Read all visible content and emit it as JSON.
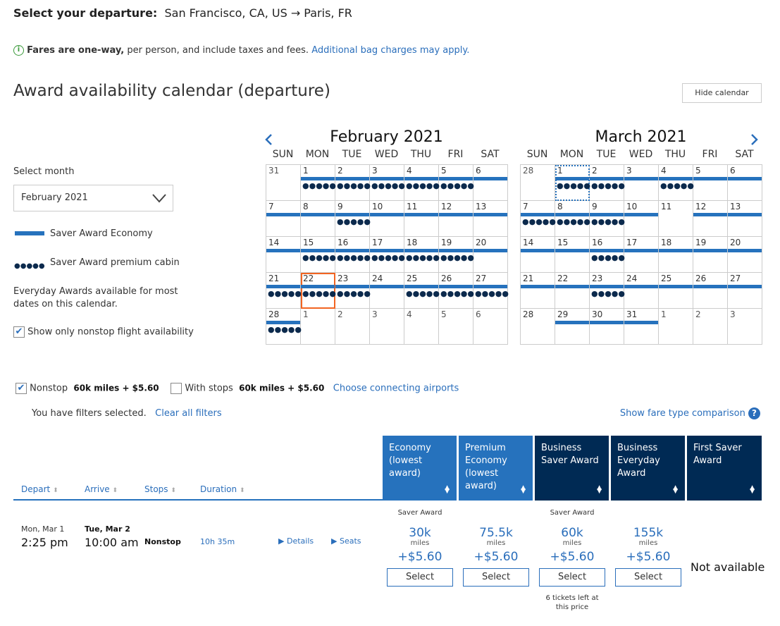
{
  "header": {
    "label": "Select your departure:",
    "route": "San Francisco, CA, US → Paris, FR"
  },
  "notice": {
    "icon": "info-icon",
    "bold": "Fares are one-way,",
    "text": " per person, and include taxes and fees.",
    "link": "Additional bag charges may apply."
  },
  "calendar": {
    "title": "Award availability calendar (departure)",
    "hide_button": "Hide calendar",
    "select_month_label": "Select month",
    "select_month_value": "February 2021",
    "legend": {
      "economy": "Saver Award Economy",
      "premium": "Saver Award premium cabin",
      "everyday": "Everyday Awards available for most dates on this calendar."
    },
    "nonstop_only": {
      "label": "Show only nonstop flight availability",
      "checked": true
    },
    "weekdays": [
      "SUN",
      "MON",
      "TUE",
      "WED",
      "THU",
      "FRI",
      "SAT"
    ],
    "colors": {
      "economy": "#2672bd",
      "premium": "#0c2a4d",
      "selected": "#f26522"
    },
    "months": [
      {
        "title": "February 2021",
        "days": [
          31,
          1,
          2,
          3,
          4,
          5,
          6,
          7,
          8,
          9,
          10,
          11,
          12,
          13,
          14,
          15,
          16,
          17,
          18,
          19,
          20,
          21,
          22,
          23,
          24,
          25,
          26,
          27,
          28,
          1,
          2,
          3,
          4,
          5,
          6
        ],
        "saver_economy": [
          0,
          1,
          1,
          1,
          1,
          1,
          1,
          1,
          1,
          1,
          1,
          1,
          1,
          1,
          1,
          1,
          1,
          1,
          1,
          1,
          1,
          1,
          1,
          1,
          1,
          1,
          1,
          1,
          1,
          0,
          0,
          0,
          0,
          0,
          0
        ],
        "saver_premium": [
          0,
          1,
          1,
          1,
          1,
          1,
          0,
          0,
          0,
          1,
          0,
          0,
          0,
          0,
          0,
          1,
          1,
          1,
          1,
          1,
          0,
          1,
          1,
          1,
          0,
          1,
          1,
          1,
          1,
          0,
          0,
          0,
          0,
          0,
          0
        ],
        "other_month": [
          1,
          0,
          0,
          0,
          0,
          0,
          0,
          0,
          0,
          0,
          0,
          0,
          0,
          0,
          0,
          0,
          0,
          0,
          0,
          0,
          0,
          0,
          0,
          0,
          0,
          0,
          0,
          0,
          0,
          1,
          1,
          1,
          1,
          1,
          1
        ],
        "selected_day": 22
      },
      {
        "title": "March 2021",
        "days": [
          28,
          1,
          2,
          3,
          4,
          5,
          6,
          7,
          8,
          9,
          10,
          11,
          12,
          13,
          14,
          15,
          16,
          17,
          18,
          19,
          20,
          21,
          22,
          23,
          24,
          25,
          26,
          27,
          28,
          29,
          30,
          31,
          1,
          2,
          3
        ],
        "saver_economy": [
          0,
          1,
          1,
          1,
          1,
          1,
          1,
          1,
          1,
          1,
          1,
          0,
          1,
          1,
          1,
          1,
          1,
          1,
          1,
          1,
          1,
          1,
          1,
          1,
          1,
          1,
          1,
          1,
          0,
          1,
          1,
          1,
          0,
          0,
          0
        ],
        "saver_premium": [
          0,
          1,
          1,
          0,
          1,
          0,
          0,
          1,
          1,
          1,
          0,
          0,
          0,
          0,
          0,
          0,
          1,
          0,
          0,
          0,
          0,
          0,
          0,
          1,
          0,
          0,
          0,
          0,
          0,
          0,
          0,
          0,
          0,
          0,
          0
        ],
        "other_month": [
          1,
          0,
          0,
          0,
          0,
          0,
          0,
          0,
          0,
          0,
          0,
          0,
          0,
          0,
          0,
          0,
          0,
          0,
          0,
          0,
          0,
          0,
          0,
          0,
          0,
          0,
          0,
          0,
          0,
          0,
          0,
          0,
          1,
          1,
          1
        ],
        "focused_day": 1
      }
    ]
  },
  "filters": {
    "nonstop": {
      "label": "Nonstop",
      "price": "60k miles + $5.60",
      "checked": true
    },
    "with_stops": {
      "label": "With stops",
      "price": "60k miles + $5.60",
      "checked": false
    },
    "connecting_link": "Choose connecting airports",
    "selected_text": "You have filters selected.",
    "clear_link": "Clear all filters",
    "compare_link": "Show fare type comparison"
  },
  "results": {
    "columns": [
      "Depart",
      "Arrive",
      "Stops",
      "Duration"
    ],
    "fare_columns": [
      "Economy (lowest award)",
      "Premium Economy (lowest award)",
      "Business Saver Award",
      "Business Everyday Award",
      "First Saver Award"
    ],
    "flight": {
      "depart_date": "Mon, Mar 1",
      "depart_time": "2:25 pm",
      "arrive_date": "Tue, Mar 2",
      "arrive_time": "10:00 am",
      "stops": "Nonstop",
      "duration": "10h 35m",
      "details": "Details",
      "seats": "Seats",
      "fares": [
        {
          "tag": "Saver Award",
          "miles": "30k",
          "unit": "miles",
          "price": "+$5.60",
          "button": "Select"
        },
        {
          "tag": "",
          "miles": "75.5k",
          "unit": "miles",
          "price": "+$5.60",
          "button": "Select"
        },
        {
          "tag": "Saver Award",
          "miles": "60k",
          "unit": "miles",
          "price": "+$5.60",
          "button": "Select",
          "note": "6 tickets left at this price"
        },
        {
          "tag": "",
          "miles": "155k",
          "unit": "miles",
          "price": "+$5.60",
          "button": "Select"
        }
      ],
      "unavailable": "Not available"
    }
  }
}
